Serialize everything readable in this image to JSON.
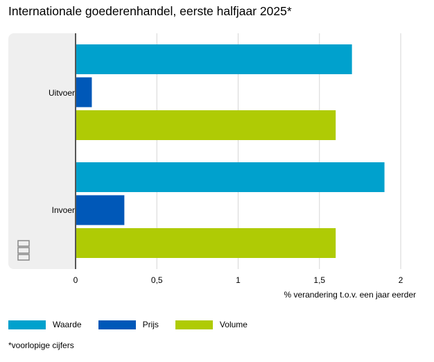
{
  "title": "Internationale goederenhandel, eerste halfjaar 2025*",
  "footnote": "*voorlopige cijfers",
  "chart_data": {
    "type": "bar",
    "orientation": "horizontal",
    "title": "Internationale goederenhandel, eerste halfjaar 2025*",
    "categories": [
      "Uitvoer",
      "Invoer"
    ],
    "series": [
      {
        "name": "Waarde",
        "color": "#00a1cd",
        "values": [
          1.7,
          1.9
        ]
      },
      {
        "name": "Prijs",
        "color": "#0058b8",
        "values": [
          0.1,
          0.3
        ]
      },
      {
        "name": "Volume",
        "color": "#afcb05",
        "values": [
          1.6,
          1.6
        ]
      }
    ],
    "xlabel": "% verandering t.o.v. een jaar eerder",
    "ylabel": "",
    "xlim": [
      0,
      2
    ],
    "xticks": [
      "0",
      "0,5",
      "1",
      "1,5",
      "2"
    ],
    "xtick_values": [
      0,
      0.5,
      1,
      1.5,
      2
    ],
    "grid": true,
    "legend_position": "bottom-left"
  }
}
